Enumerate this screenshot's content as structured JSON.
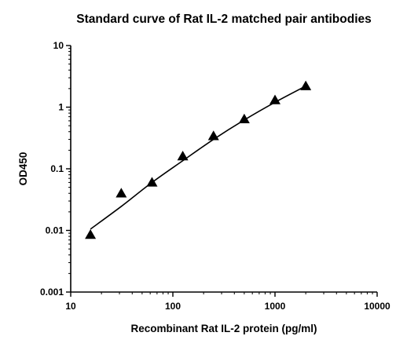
{
  "chart_data": {
    "type": "scatter",
    "title": "Standard curve of Rat IL-2 matched pair antibodies",
    "xlabel": "Recombinant Rat IL-2 protein (pg/ml)",
    "ylabel": "OD450",
    "xscale": "log",
    "yscale": "log",
    "xlim": [
      10,
      10000
    ],
    "ylim": [
      0.001,
      10
    ],
    "xticks": [
      10,
      100,
      1000,
      10000
    ],
    "xtick_labels": [
      "10",
      "100",
      "1000",
      "10000"
    ],
    "yticks": [
      0.001,
      0.01,
      0.1,
      1,
      10
    ],
    "ytick_labels": [
      "0.001",
      "0.01",
      "0.1",
      "1",
      "10"
    ],
    "grid": false,
    "marker": "triangle",
    "color": "#000000",
    "points": [
      {
        "x": 15.6,
        "y": 0.0085
      },
      {
        "x": 31.25,
        "y": 0.04
      },
      {
        "x": 62.5,
        "y": 0.06
      },
      {
        "x": 125,
        "y": 0.16
      },
      {
        "x": 250,
        "y": 0.34
      },
      {
        "x": 500,
        "y": 0.64
      },
      {
        "x": 1000,
        "y": 1.3
      },
      {
        "x": 2000,
        "y": 2.2
      }
    ],
    "fit_curve": [
      {
        "x": 15.6,
        "y": 0.0105
      },
      {
        "x": 31.25,
        "y": 0.0245
      },
      {
        "x": 62.5,
        "y": 0.06
      },
      {
        "x": 125,
        "y": 0.135
      },
      {
        "x": 250,
        "y": 0.3
      },
      {
        "x": 500,
        "y": 0.62
      },
      {
        "x": 1000,
        "y": 1.2
      },
      {
        "x": 2000,
        "y": 2.2
      }
    ]
  }
}
